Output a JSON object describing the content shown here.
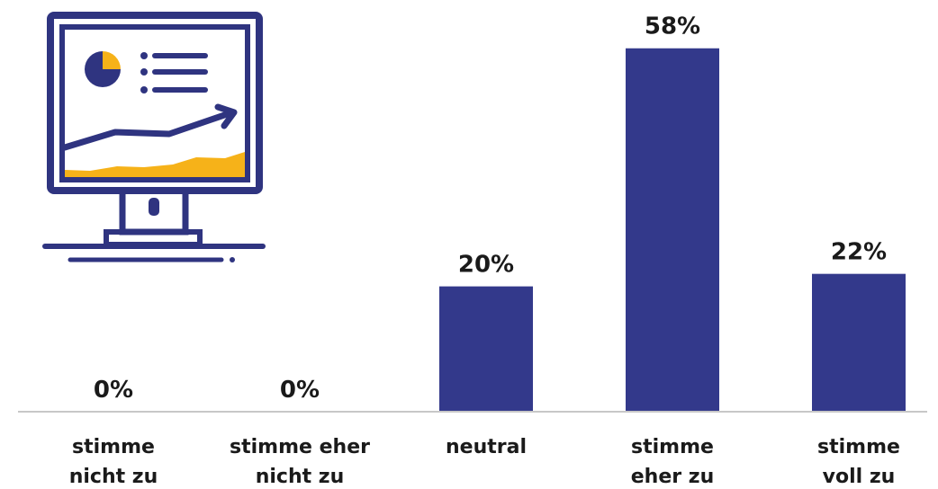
{
  "chart_data": {
    "type": "bar",
    "categories": [
      [
        "stimme",
        "nicht zu"
      ],
      [
        "stimme eher",
        "nicht zu"
      ],
      [
        "neutral"
      ],
      [
        "stimme",
        "eher zu"
      ],
      [
        "stimme",
        "voll zu"
      ]
    ],
    "values": [
      0,
      0,
      20,
      58,
      22
    ],
    "value_labels": [
      "0%",
      "0%",
      "20%",
      "58%",
      "22%"
    ],
    "unit": "%",
    "ylim": [
      0,
      58
    ],
    "grid": false,
    "legend": "none",
    "colors": {
      "bar": "#33398b",
      "axis": "#c8c8c8",
      "text": "#1a1a1a"
    }
  },
  "illustration": {
    "icon": "monitor-dashboard-icon",
    "colors": {
      "outline": "#2f3480",
      "accent": "#f6b219",
      "screen": "#ffffff"
    }
  }
}
